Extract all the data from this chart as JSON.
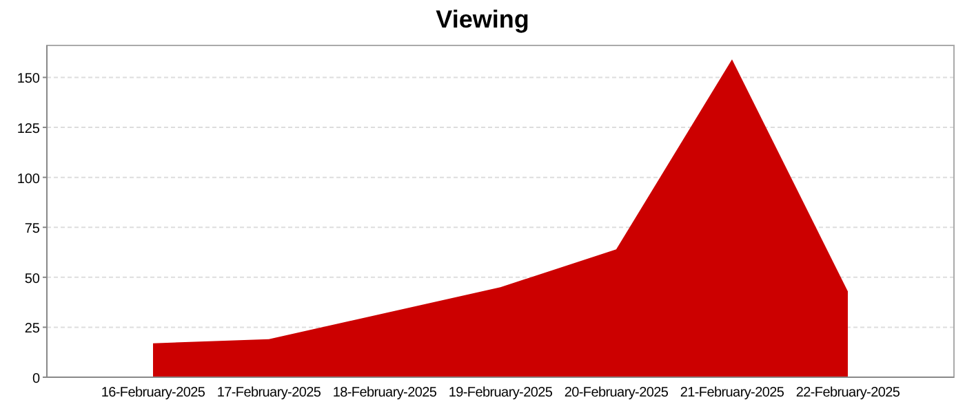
{
  "chart_data": {
    "type": "area",
    "title": "Viewing",
    "categories": [
      "16-February-2025",
      "17-February-2025",
      "18-February-2025",
      "19-February-2025",
      "20-February-2025",
      "21-February-2025",
      "22-February-2025"
    ],
    "series": [
      {
        "color": "#cc0000",
        "values": [
          17,
          19,
          32,
          45,
          64,
          159,
          43
        ]
      }
    ],
    "ylim": [
      0,
      166
    ],
    "yticks": [
      0,
      25,
      50,
      75,
      100,
      125,
      150
    ],
    "grid": "y"
  }
}
